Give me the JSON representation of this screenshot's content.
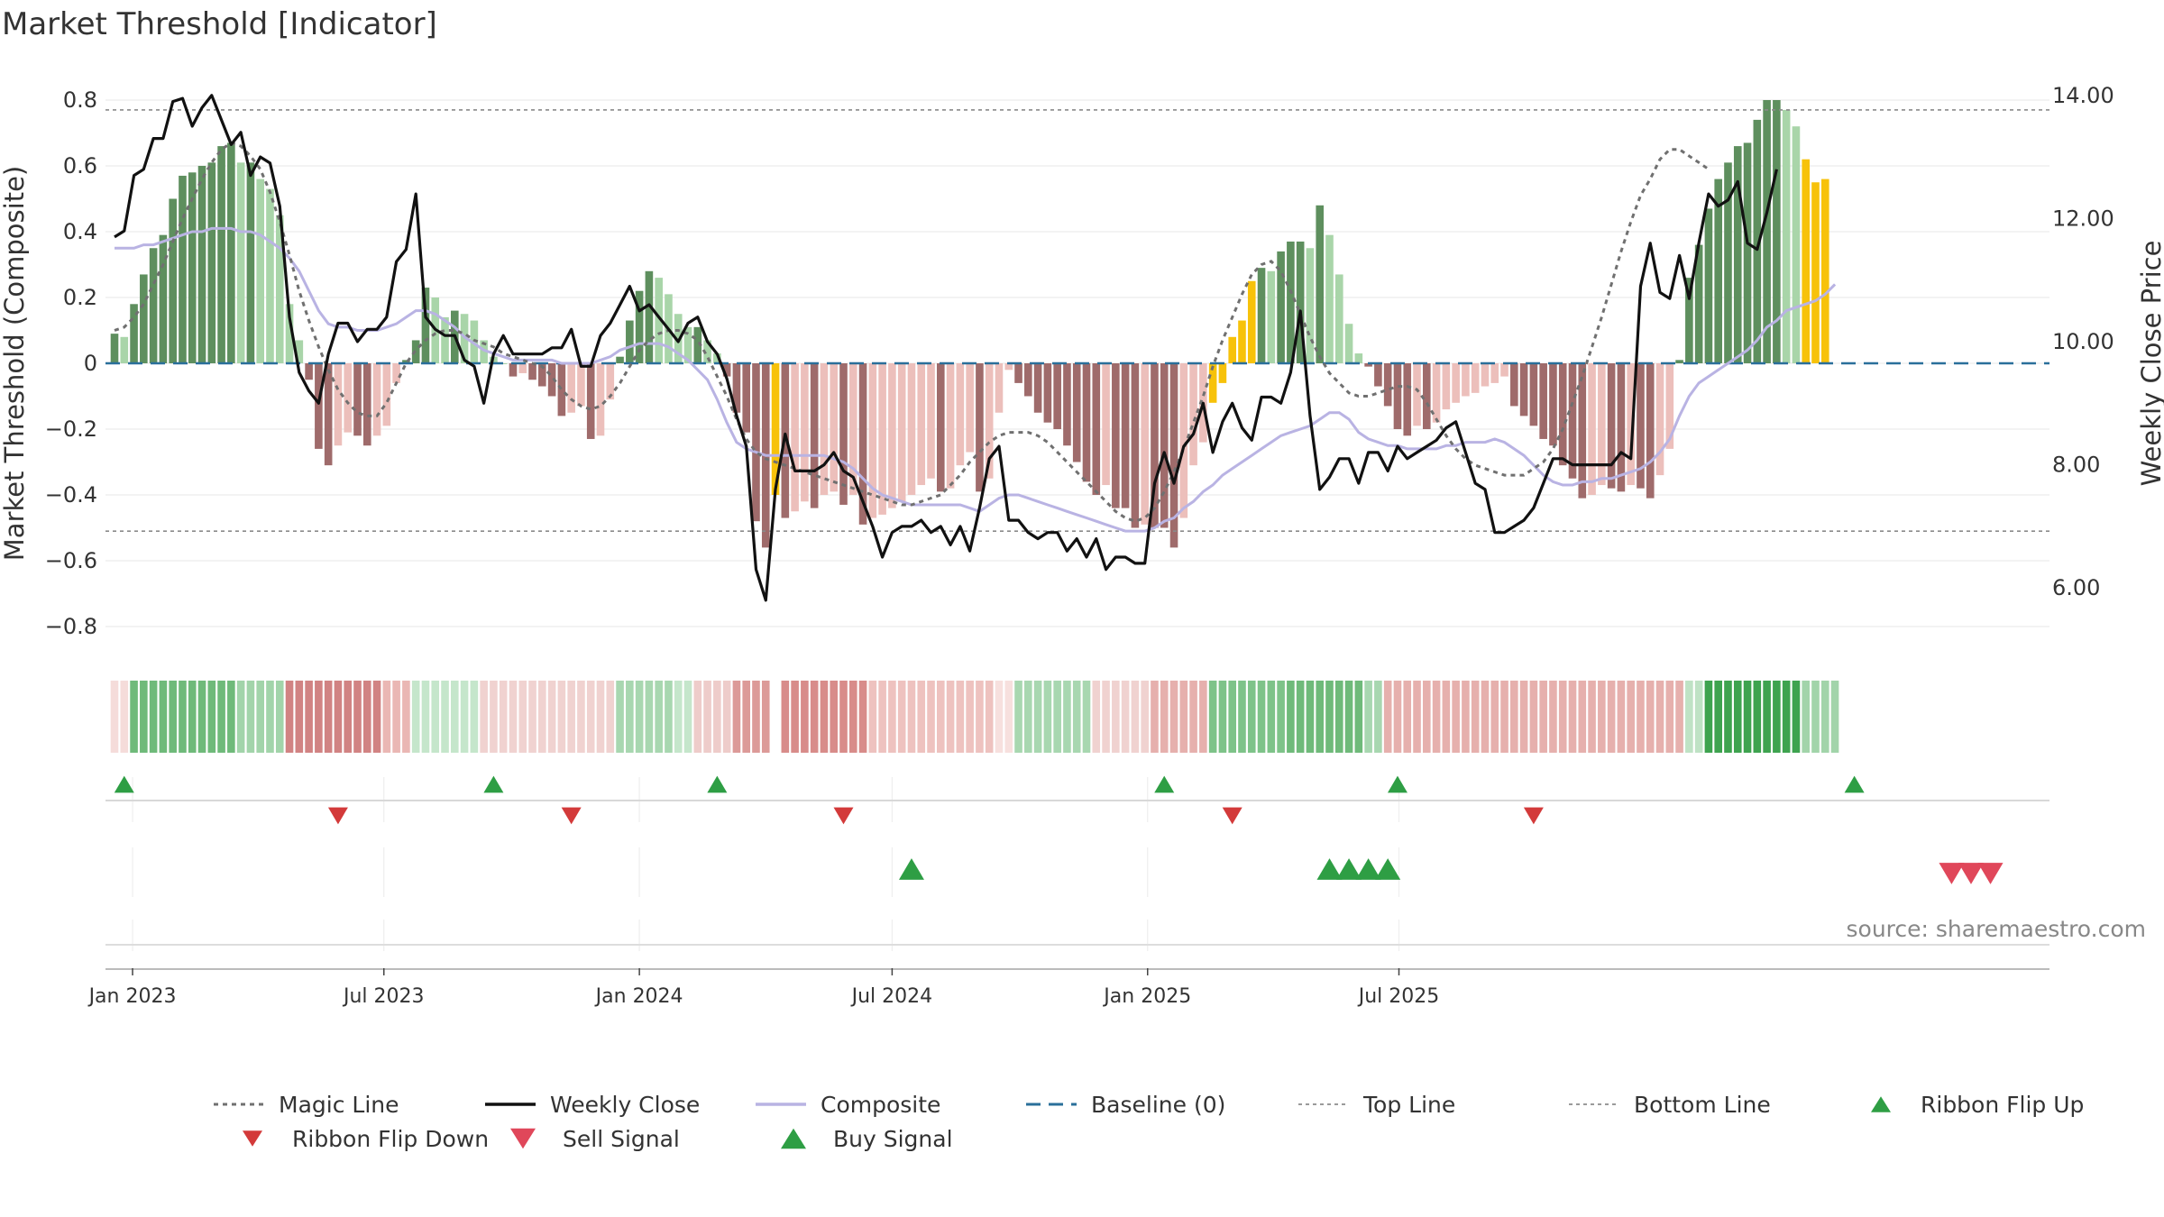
{
  "title": "Market Threshold [Indicator]",
  "source": "source: sharemaestro.com",
  "colors": {
    "dark_green": "#5e8f5e",
    "light_green": "#a9d5a9",
    "dark_red": "#9f6b6b",
    "light_red": "#ecbfbb",
    "yellow": "#f7c20a",
    "composite": "#b9b3e3",
    "weekly_close": "#111111",
    "magic": "#707070",
    "baseline": "#2a6f9a",
    "signal_green": "#2e9e44",
    "signal_red": "#d33a3a"
  },
  "chart_data": {
    "type": "bar",
    "title": "Market Threshold [Indicator]",
    "x_axis": {
      "tick_labels": [
        "Jan 2023",
        "Jul 2023",
        "Jan 2024",
        "Jul 2024",
        "Jan 2025",
        "Jul 2025"
      ]
    },
    "y_left": {
      "label": "Market Threshold (Composite)",
      "range": [
        -0.87,
        0.87
      ],
      "ticks": [
        0.8,
        0.6,
        0.4,
        0.2,
        0,
        -0.2,
        -0.4,
        -0.6,
        -0.8
      ],
      "tick_labels": [
        "0.8",
        "0.6",
        "0.4",
        "0.2",
        "0",
        "−0.2",
        "−0.4",
        "−0.6",
        "−0.8"
      ]
    },
    "y_right": {
      "label": "Weekly Close Price",
      "range": [
        5.17,
        14.27
      ],
      "ticks": [
        14,
        12,
        10,
        8,
        6
      ],
      "tick_labels": [
        "14.00",
        "12.00",
        "10.00",
        "8.00",
        "6.00"
      ]
    },
    "top_line": 0.77,
    "bottom_line": -0.51,
    "week_start": "2022-12-19",
    "composite_bars": [
      0.09,
      0.08,
      0.18,
      0.27,
      0.35,
      0.39,
      0.5,
      0.57,
      0.58,
      0.6,
      0.61,
      0.66,
      0.67,
      0.61,
      0.61,
      0.56,
      0.53,
      0.45,
      0.18,
      0.07,
      -0.05,
      -0.26,
      -0.31,
      -0.25,
      -0.21,
      -0.22,
      -0.25,
      -0.22,
      -0.19,
      -0.06,
      0.01,
      0.07,
      0.23,
      0.2,
      0.14,
      0.16,
      0.15,
      0.13,
      0.07,
      0.02,
      0,
      -0.04,
      -0.03,
      -0.05,
      -0.07,
      -0.1,
      -0.16,
      -0.15,
      -0.13,
      -0.23,
      -0.22,
      -0.11,
      0.02,
      0.13,
      0.22,
      0.28,
      0.26,
      0.21,
      0.15,
      0.11,
      0.11,
      0.07,
      0.03,
      -0.04,
      -0.15,
      -0.21,
      -0.48,
      -0.56,
      -0.4,
      -0.47,
      -0.45,
      -0.42,
      -0.44,
      -0.4,
      -0.39,
      -0.43,
      -0.4,
      -0.49,
      -0.47,
      -0.46,
      -0.44,
      -0.42,
      -0.4,
      -0.37,
      -0.35,
      -0.39,
      -0.38,
      -0.31,
      -0.27,
      -0.39,
      -0.35,
      -0.15,
      -0.02,
      -0.06,
      -0.1,
      -0.15,
      -0.18,
      -0.2,
      -0.25,
      -0.3,
      -0.36,
      -0.4,
      -0.37,
      -0.44,
      -0.44,
      -0.5,
      -0.49,
      -0.5,
      -0.5,
      -0.56,
      -0.47,
      -0.31,
      -0.24,
      -0.12,
      -0.06,
      0.08,
      0.13,
      0.25,
      0.29,
      0.28,
      0.34,
      0.37,
      0.37,
      0.35,
      0.48,
      0.39,
      0.27,
      0.12,
      0.03,
      -0.01,
      -0.07,
      -0.13,
      -0.2,
      -0.22,
      -0.19,
      -0.2,
      -0.18,
      -0.14,
      -0.12,
      -0.1,
      -0.09,
      -0.07,
      -0.06,
      -0.04,
      -0.13,
      -0.16,
      -0.19,
      -0.23,
      -0.25,
      -0.31,
      -0.35,
      -0.41,
      -0.4,
      -0.37,
      -0.38,
      -0.39,
      -0.37,
      -0.38,
      -0.41,
      -0.34,
      -0.26,
      0.01,
      0.26,
      0.36,
      0.47,
      0.56,
      0.61,
      0.66,
      0.67,
      0.74,
      0.8,
      0.8,
      0.77,
      0.72,
      0.62,
      0.55,
      0.56
    ],
    "yellow_bars": [
      68,
      113,
      114,
      115,
      116,
      117,
      174,
      175,
      176
    ],
    "weekly_close": [
      11.7,
      11.8,
      12.7,
      12.8,
      13.3,
      13.3,
      13.9,
      13.95,
      13.5,
      13.8,
      14.0,
      13.6,
      13.2,
      13.4,
      12.7,
      13.0,
      12.9,
      12.2,
      10.4,
      9.5,
      9.2,
      9.0,
      9.8,
      10.3,
      10.3,
      10.0,
      10.2,
      10.2,
      10.4,
      11.3,
      11.5,
      12.4,
      10.4,
      10.2,
      10.1,
      10.1,
      9.7,
      9.6,
      9.0,
      9.8,
      10.1,
      9.8,
      9.8,
      9.8,
      9.8,
      9.9,
      9.9,
      10.2,
      9.6,
      9.6,
      10.1,
      10.3,
      10.6,
      10.9,
      10.5,
      10.6,
      10.4,
      10.2,
      10.0,
      10.3,
      10.4,
      10.0,
      9.8,
      9.4,
      8.8,
      8.3,
      6.3,
      5.8,
      7.6,
      8.5,
      7.9,
      7.9,
      7.9,
      8.0,
      8.2,
      7.9,
      7.8,
      7.4,
      7.0,
      6.5,
      6.9,
      7.0,
      7.0,
      7.1,
      6.9,
      7.0,
      6.7,
      7.0,
      6.6,
      7.3,
      8.1,
      8.3,
      7.1,
      7.1,
      6.9,
      6.8,
      6.9,
      6.9,
      6.6,
      6.8,
      6.5,
      6.8,
      6.3,
      6.5,
      6.5,
      6.4,
      6.4,
      7.7,
      8.2,
      7.7,
      8.3,
      8.5,
      9.0,
      8.2,
      8.7,
      9.0,
      8.6,
      8.4,
      9.1,
      9.1,
      9.0,
      9.5,
      10.5,
      8.8,
      7.6,
      7.8,
      8.1,
      8.1,
      7.7,
      8.2,
      8.2,
      7.9,
      8.3,
      8.1,
      8.2,
      8.3,
      8.4,
      8.6,
      8.7,
      8.2,
      7.7,
      7.6,
      6.9,
      6.9,
      7.0,
      7.1,
      7.3,
      7.7,
      8.1,
      8.1,
      8.0,
      8.0,
      8.0,
      8.0,
      8.0,
      8.2,
      8.1,
      10.9,
      11.6,
      10.8,
      10.7,
      11.4,
      10.7,
      11.6,
      12.4,
      12.2,
      12.3,
      12.6,
      11.6,
      11.5,
      12.1,
      12.8
    ],
    "composite_line": [
      0.35,
      0.35,
      0.35,
      0.36,
      0.36,
      0.37,
      0.38,
      0.39,
      0.4,
      0.4,
      0.41,
      0.41,
      0.41,
      0.4,
      0.4,
      0.39,
      0.37,
      0.35,
      0.32,
      0.28,
      0.22,
      0.16,
      0.12,
      0.11,
      0.11,
      0.1,
      0.1,
      0.1,
      0.11,
      0.12,
      0.14,
      0.16,
      0.16,
      0.15,
      0.13,
      0.11,
      0.08,
      0.06,
      0.04,
      0.03,
      0.02,
      0.01,
      0.01,
      0.01,
      0.01,
      0.01,
      0.0,
      0.0,
      0.0,
      0.0,
      0.01,
      0.02,
      0.04,
      0.05,
      0.06,
      0.06,
      0.06,
      0.05,
      0.03,
      0.01,
      -0.02,
      -0.05,
      -0.11,
      -0.18,
      -0.24,
      -0.26,
      -0.27,
      -0.28,
      -0.28,
      -0.28,
      -0.28,
      -0.28,
      -0.28,
      -0.28,
      -0.29,
      -0.3,
      -0.32,
      -0.35,
      -0.38,
      -0.4,
      -0.41,
      -0.42,
      -0.43,
      -0.43,
      -0.43,
      -0.43,
      -0.43,
      -0.43,
      -0.44,
      -0.45,
      -0.43,
      -0.41,
      -0.4,
      -0.4,
      -0.41,
      -0.42,
      -0.43,
      -0.44,
      -0.45,
      -0.46,
      -0.47,
      -0.48,
      -0.49,
      -0.5,
      -0.51,
      -0.51,
      -0.51,
      -0.5,
      -0.48,
      -0.47,
      -0.44,
      -0.42,
      -0.39,
      -0.37,
      -0.34,
      -0.32,
      -0.3,
      -0.28,
      -0.26,
      -0.24,
      -0.22,
      -0.21,
      -0.2,
      -0.19,
      -0.17,
      -0.15,
      -0.15,
      -0.17,
      -0.21,
      -0.23,
      -0.24,
      -0.25,
      -0.25,
      -0.26,
      -0.26,
      -0.26,
      -0.26,
      -0.25,
      -0.25,
      -0.24,
      -0.24,
      -0.24,
      -0.23,
      -0.24,
      -0.26,
      -0.28,
      -0.31,
      -0.34,
      -0.36,
      -0.37,
      -0.37,
      -0.36,
      -0.36,
      -0.35,
      -0.35,
      -0.34,
      -0.33,
      -0.32,
      -0.3,
      -0.27,
      -0.23,
      -0.16,
      -0.1,
      -0.06,
      -0.04,
      -0.02,
      0.0,
      0.02,
      0.04,
      0.07,
      0.11,
      0.13,
      0.16,
      0.17,
      0.18,
      0.19,
      0.21,
      0.24
    ],
    "magic_line": [
      0.1,
      0.11,
      0.14,
      0.18,
      0.24,
      0.3,
      0.37,
      0.44,
      0.5,
      0.56,
      0.61,
      0.65,
      0.67,
      0.66,
      0.63,
      0.59,
      0.52,
      0.43,
      0.33,
      0.22,
      0.13,
      0.05,
      -0.02,
      -0.08,
      -0.12,
      -0.15,
      -0.16,
      -0.16,
      -0.12,
      -0.06,
      0.0,
      0.04,
      0.07,
      0.09,
      0.1,
      0.1,
      0.09,
      0.07,
      0.06,
      0.05,
      0.03,
      0.02,
      0.01,
      0.0,
      -0.01,
      -0.04,
      -0.08,
      -0.11,
      -0.13,
      -0.14,
      -0.13,
      -0.1,
      -0.06,
      -0.01,
      0.04,
      0.07,
      0.09,
      0.1,
      0.1,
      0.09,
      0.07,
      0.02,
      -0.04,
      -0.1,
      -0.17,
      -0.23,
      -0.27,
      -0.29,
      -0.3,
      -0.31,
      -0.32,
      -0.33,
      -0.34,
      -0.35,
      -0.36,
      -0.37,
      -0.38,
      -0.39,
      -0.4,
      -0.41,
      -0.42,
      -0.43,
      -0.43,
      -0.42,
      -0.41,
      -0.4,
      -0.37,
      -0.34,
      -0.3,
      -0.27,
      -0.24,
      -0.22,
      -0.21,
      -0.21,
      -0.21,
      -0.22,
      -0.24,
      -0.27,
      -0.3,
      -0.33,
      -0.36,
      -0.39,
      -0.42,
      -0.45,
      -0.47,
      -0.48,
      -0.47,
      -0.44,
      -0.39,
      -0.33,
      -0.26,
      -0.18,
      -0.1,
      -0.01,
      0.07,
      0.14,
      0.21,
      0.27,
      0.3,
      0.31,
      0.28,
      0.22,
      0.15,
      0.08,
      0.02,
      -0.03,
      -0.06,
      -0.09,
      -0.1,
      -0.1,
      -0.09,
      -0.08,
      -0.07,
      -0.07,
      -0.08,
      -0.12,
      -0.17,
      -0.22,
      -0.26,
      -0.29,
      -0.31,
      -0.32,
      -0.33,
      -0.34,
      -0.34,
      -0.34,
      -0.32,
      -0.3,
      -0.26,
      -0.2,
      -0.12,
      -0.04,
      0.05,
      0.14,
      0.24,
      0.34,
      0.43,
      0.51,
      0.56,
      0.62,
      0.65,
      0.65,
      0.63,
      0.61,
      0.59
    ],
    "ribbon": [
      {
        "from": 0,
        "to": 2,
        "color": "#f5dcda"
      },
      {
        "from": 2,
        "to": 13,
        "color": "#6fba7a"
      },
      {
        "from": 13,
        "to": 18,
        "color": "#a2d4aa"
      },
      {
        "from": 18,
        "to": 28,
        "color": "#d18383"
      },
      {
        "from": 28,
        "to": 31,
        "color": "#eab7b4"
      },
      {
        "from": 31,
        "to": 38,
        "color": "#c5e6cb"
      },
      {
        "from": 38,
        "to": 52,
        "color": "#f0d2d0"
      },
      {
        "from": 52,
        "to": 58,
        "color": "#a8d7b0"
      },
      {
        "from": 58,
        "to": 60,
        "color": "#c5e6cb"
      },
      {
        "from": 60,
        "to": 64,
        "color": "#eeccca"
      },
      {
        "from": 64,
        "to": 68,
        "color": "#dc9a98"
      },
      {
        "from": 69,
        "to": 78,
        "color": "#d88c8a"
      },
      {
        "from": 78,
        "to": 91,
        "color": "#eec2bf"
      },
      {
        "from": 91,
        "to": 93,
        "color": "#f7e0de"
      },
      {
        "from": 93,
        "to": 101,
        "color": "#a8d7b0"
      },
      {
        "from": 101,
        "to": 107,
        "color": "#f0d2d0"
      },
      {
        "from": 107,
        "to": 113,
        "color": "#e6b0ad"
      },
      {
        "from": 113,
        "to": 121,
        "color": "#7ec389"
      },
      {
        "from": 121,
        "to": 129,
        "color": "#6fba7a"
      },
      {
        "from": 129,
        "to": 131,
        "color": "#a8d7b0"
      },
      {
        "from": 131,
        "to": 162,
        "color": "#e6b0ad"
      },
      {
        "from": 162,
        "to": 164,
        "color": "#bfe2c5"
      },
      {
        "from": 164,
        "to": 174,
        "color": "#3ea34f"
      },
      {
        "from": 174,
        "to": 178,
        "color": "#a2d4aa"
      }
    ],
    "ribbon_flip_up": [
      1,
      39,
      62,
      108,
      132,
      179
    ],
    "ribbon_flip_down": [
      23,
      47,
      75,
      115,
      146
    ],
    "buy_signal": [
      82,
      125,
      127,
      129,
      131
    ],
    "sell_signal": [
      189,
      191,
      193
    ],
    "legend": [
      {
        "label": "Magic Line",
        "style": "dot-line",
        "color": "#707070"
      },
      {
        "label": "Weekly Close",
        "style": "solid-line",
        "color": "#111111"
      },
      {
        "label": "Composite",
        "style": "solid-line",
        "color": "#b9b3e3"
      },
      {
        "label": "Baseline (0)",
        "style": "dash-line",
        "color": "#2a6f9a"
      },
      {
        "label": "Top Line",
        "style": "fine-dot-line",
        "color": "#9a9a9a"
      },
      {
        "label": "Bottom Line",
        "style": "fine-dot-line",
        "color": "#9a9a9a"
      },
      {
        "label": "Ribbon Flip Up",
        "style": "triangle-up",
        "color": "#2e9e44"
      },
      {
        "label": "Ribbon Flip Down",
        "style": "triangle-down",
        "color": "#d33a3a"
      },
      {
        "label": "Sell Signal",
        "style": "triangle-down",
        "color": "#e0475a"
      },
      {
        "label": "Buy Signal",
        "style": "triangle-up",
        "color": "#2e9e44"
      }
    ]
  }
}
